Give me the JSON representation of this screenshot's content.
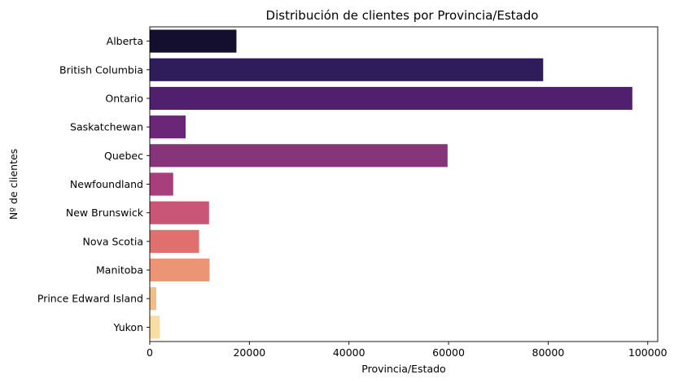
{
  "chart_data": {
    "type": "bar",
    "orientation": "horizontal",
    "title": "Distribución de clientes por Provincia/Estado",
    "xlabel": "Provincia/Estado",
    "ylabel": "Nº de clientes",
    "categories": [
      "Alberta",
      "British Columbia",
      "Ontario",
      "Saskatchewan",
      "Quebec",
      "Newfoundland",
      "New Brunswick",
      "Nova Scotia",
      "Manitoba",
      "Prince Edward Island",
      "Yukon"
    ],
    "values": [
      17400,
      79000,
      96900,
      7200,
      59800,
      4700,
      11900,
      9900,
      12000,
      1300,
      2000
    ],
    "xlim": [
      0,
      102000
    ],
    "xticks": [
      0,
      20000,
      40000,
      60000,
      80000,
      100000
    ],
    "xtick_labels": [
      "0",
      "20000",
      "40000",
      "60000",
      "80000",
      "100000"
    ],
    "grid": false,
    "legend": "none",
    "colors": [
      "#140f2e",
      "#2f1c5b",
      "#50206f",
      "#6b2677",
      "#87357a",
      "#a83f7c",
      "#c95577",
      "#e06f6e",
      "#ec9575",
      "#f4bd88",
      "#f8dca3"
    ]
  }
}
